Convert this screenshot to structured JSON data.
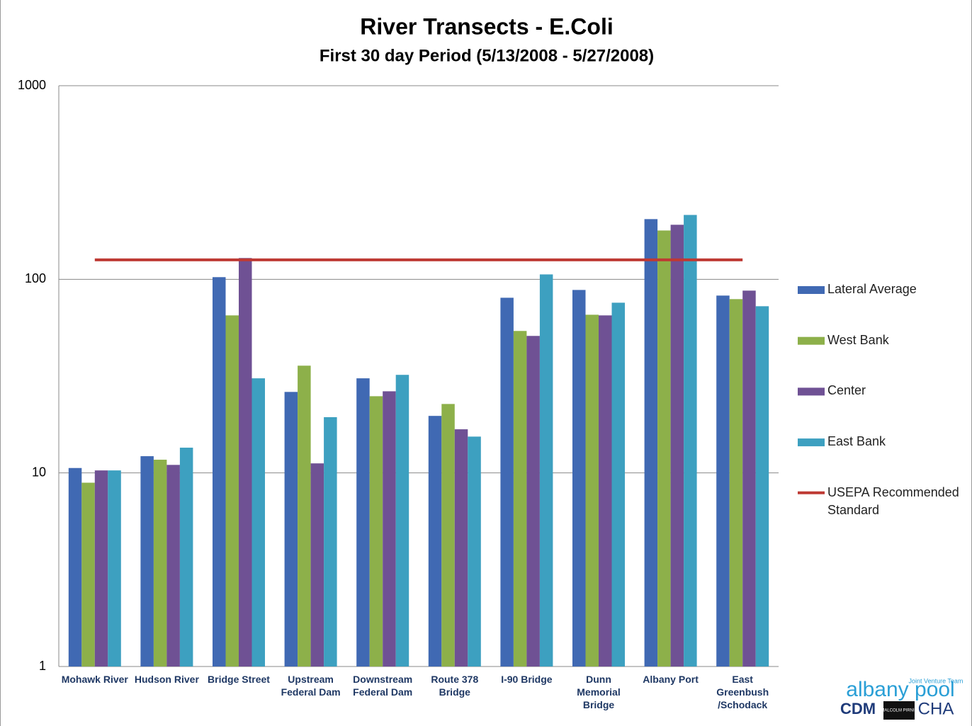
{
  "chart_data": {
    "type": "bar",
    "title": "River Transects - E.Coli",
    "subtitle": "First 30 day Period (5/13/2008 - 5/27/2008)",
    "categories": [
      "Mohawk River",
      "Hudson River",
      "Bridge Street",
      "Upstream Federal Dam",
      "Downstream Federal Dam",
      "Route 378 Bridge",
      "I-90 Bridge",
      "Dunn Memorial Bridge",
      "Albany Port",
      "East Greenbush /Schodack"
    ],
    "series": [
      {
        "name": "Lateral Average",
        "color": "#4069b3",
        "type": "bar",
        "values": [
          10.6,
          12.2,
          102.6,
          26.2,
          30.8,
          19.7,
          80.3,
          88.1,
          204.6,
          82.4
        ]
      },
      {
        "name": "West Bank",
        "color": "#8db04a",
        "type": "bar",
        "values": [
          8.9,
          11.7,
          65.1,
          35.8,
          24.9,
          22.7,
          54.1,
          65.6,
          178.7,
          79.0
        ]
      },
      {
        "name": "Center",
        "color": "#6f5194",
        "type": "bar",
        "values": [
          10.3,
          11.0,
          128.8,
          11.2,
          26.4,
          16.8,
          51.0,
          65.1,
          191.3,
          87.4
        ]
      },
      {
        "name": "East Bank",
        "color": "#3da0c0",
        "type": "bar",
        "values": [
          10.3,
          13.5,
          30.8,
          19.4,
          32.1,
          15.4,
          106,
          75.7,
          215,
          72.6
        ]
      },
      {
        "name": "USEPA Recommended Standard",
        "color": "#be3a34",
        "type": "line",
        "values": [
          126,
          126,
          126,
          126,
          126,
          126,
          126,
          126,
          126,
          126
        ]
      }
    ],
    "ylim": [
      1,
      1000
    ],
    "yticks": [
      1,
      10,
      100,
      1000
    ],
    "log_scale": true,
    "grid": true,
    "legend": "right"
  },
  "logo": {
    "tagline": "Joint Venture Team",
    "name": "albany pool",
    "firm1": "CDM",
    "firm2": "MALCOLM PIRNIE",
    "firm3": "CHA"
  }
}
